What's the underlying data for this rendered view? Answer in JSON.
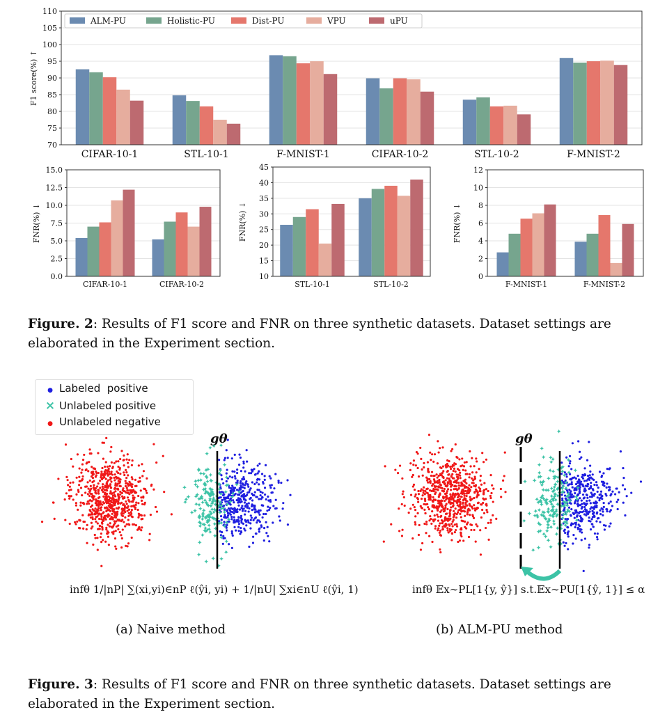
{
  "legend": [
    "ALM-PU",
    "Holistic-PU",
    "Dist-PU",
    "VPU",
    "uPU"
  ],
  "colors": [
    "#6b8bb1",
    "#76a58e",
    "#e5776c",
    "#e6ad9e",
    "#bd6a70"
  ],
  "chart_data": [
    {
      "type": "bar",
      "ylabel": "F1 score(%) ↑",
      "ylim": [
        70,
        110
      ],
      "yticks": [
        70,
        75,
        80,
        85,
        90,
        95,
        100,
        105,
        110
      ],
      "categories": [
        "CIFAR-10-1",
        "STL-10-1",
        "F-MNIST-1",
        "CIFAR-10-2",
        "STL-10-2",
        "F-MNIST-2"
      ],
      "series": [
        {
          "name": "ALM-PU",
          "values": [
            92.6,
            84.8,
            96.8,
            89.9,
            83.5,
            96.0
          ]
        },
        {
          "name": "Holistic-PU",
          "values": [
            91.7,
            83.1,
            96.5,
            86.9,
            84.2,
            94.6
          ]
        },
        {
          "name": "Dist-PU",
          "values": [
            90.2,
            81.5,
            94.4,
            89.9,
            81.5,
            95.0
          ]
        },
        {
          "name": "VPU",
          "values": [
            86.5,
            77.5,
            95.0,
            89.6,
            81.7,
            95.2
          ]
        },
        {
          "name": "uPU",
          "values": [
            83.2,
            76.3,
            91.2,
            85.9,
            79.1,
            93.9
          ]
        }
      ],
      "legend_position": "top-left"
    },
    {
      "type": "bar",
      "ylabel": "FNR(%) ↓",
      "ylim": [
        0,
        15
      ],
      "yticks": [
        0.0,
        2.5,
        5.0,
        7.5,
        10.0,
        12.5,
        15.0
      ],
      "ytick_labels": [
        "0.0",
        "2.5",
        "5.0",
        "7.5",
        "10.0",
        "12.5",
        "15.0"
      ],
      "categories": [
        "CIFAR-10-1",
        "CIFAR-10-2"
      ],
      "series": [
        {
          "name": "ALM-PU",
          "values": [
            5.4,
            5.2
          ]
        },
        {
          "name": "Holistic-PU",
          "values": [
            7.0,
            7.7
          ]
        },
        {
          "name": "Dist-PU",
          "values": [
            7.6,
            9.0
          ]
        },
        {
          "name": "VPU",
          "values": [
            10.7,
            7.0
          ]
        },
        {
          "name": "uPU",
          "values": [
            12.2,
            9.8
          ]
        }
      ]
    },
    {
      "type": "bar",
      "ylabel": "FNR(%) ↓",
      "ylim": [
        10,
        45
      ],
      "yticks": [
        10,
        15,
        20,
        25,
        30,
        35,
        40,
        45
      ],
      "categories": [
        "STL-10-1",
        "STL-10-2"
      ],
      "series": [
        {
          "name": "ALM-PU",
          "values": [
            26.5,
            35.0
          ]
        },
        {
          "name": "Holistic-PU",
          "values": [
            29.0,
            38.0
          ]
        },
        {
          "name": "Dist-PU",
          "values": [
            31.5,
            39.0
          ]
        },
        {
          "name": "VPU",
          "values": [
            20.5,
            35.8
          ]
        },
        {
          "name": "uPU",
          "values": [
            33.2,
            41.0
          ]
        }
      ]
    },
    {
      "type": "bar",
      "ylabel": "FNR(%) ↓",
      "ylim": [
        0,
        12
      ],
      "yticks": [
        0,
        2,
        4,
        6,
        8,
        10,
        12
      ],
      "categories": [
        "F-MNIST-1",
        "F-MNIST-2"
      ],
      "series": [
        {
          "name": "ALM-PU",
          "values": [
            2.7,
            3.9
          ]
        },
        {
          "name": "Holistic-PU",
          "values": [
            4.8,
            4.8
          ]
        },
        {
          "name": "Dist-PU",
          "values": [
            6.5,
            6.9
          ]
        },
        {
          "name": "VPU",
          "values": [
            7.1,
            1.5
          ]
        },
        {
          "name": "uPU",
          "values": [
            8.1,
            5.9
          ]
        }
      ]
    }
  ],
  "figure2": {
    "label": "Figure. 2",
    "text": ": Results of F1 score and FNR on three synthetic datasets. Dataset settings are elaborated in the Experiment section."
  },
  "scatter_legend": {
    "labeled_positive": "Labeled  positive",
    "unlabeled_positive": "Unlabeled positive",
    "unlabeled_negative": "Unlabeled negative",
    "colors": {
      "labeled_positive": "#1f1fe0",
      "unlabeled_positive": "#3cc3a6",
      "unlabeled_negative": "#f01818"
    }
  },
  "panel_a": {
    "boundary_label": "gθ",
    "formula": "infθ  1/|nP| ∑(xi,yi)∈nP ℓ(ŷi, yi) + 1/|nU| ∑xi∈nU ℓ(ŷi, 1)",
    "caption": "(a) Naive method"
  },
  "panel_b": {
    "boundary_label": "gθ",
    "formula": "infθ  𝔼x∼PL[1{y, ŷ}]   s.t.𝔼x∼PU[1{ŷ, 1}] ≤ α",
    "caption": "(b) ALM-PU method"
  },
  "figure3": {
    "label": "Figure. 3",
    "text": ": Results of F1 score and FNR on three synthetic datasets. Dataset settings are elaborated in the Experiment section."
  }
}
